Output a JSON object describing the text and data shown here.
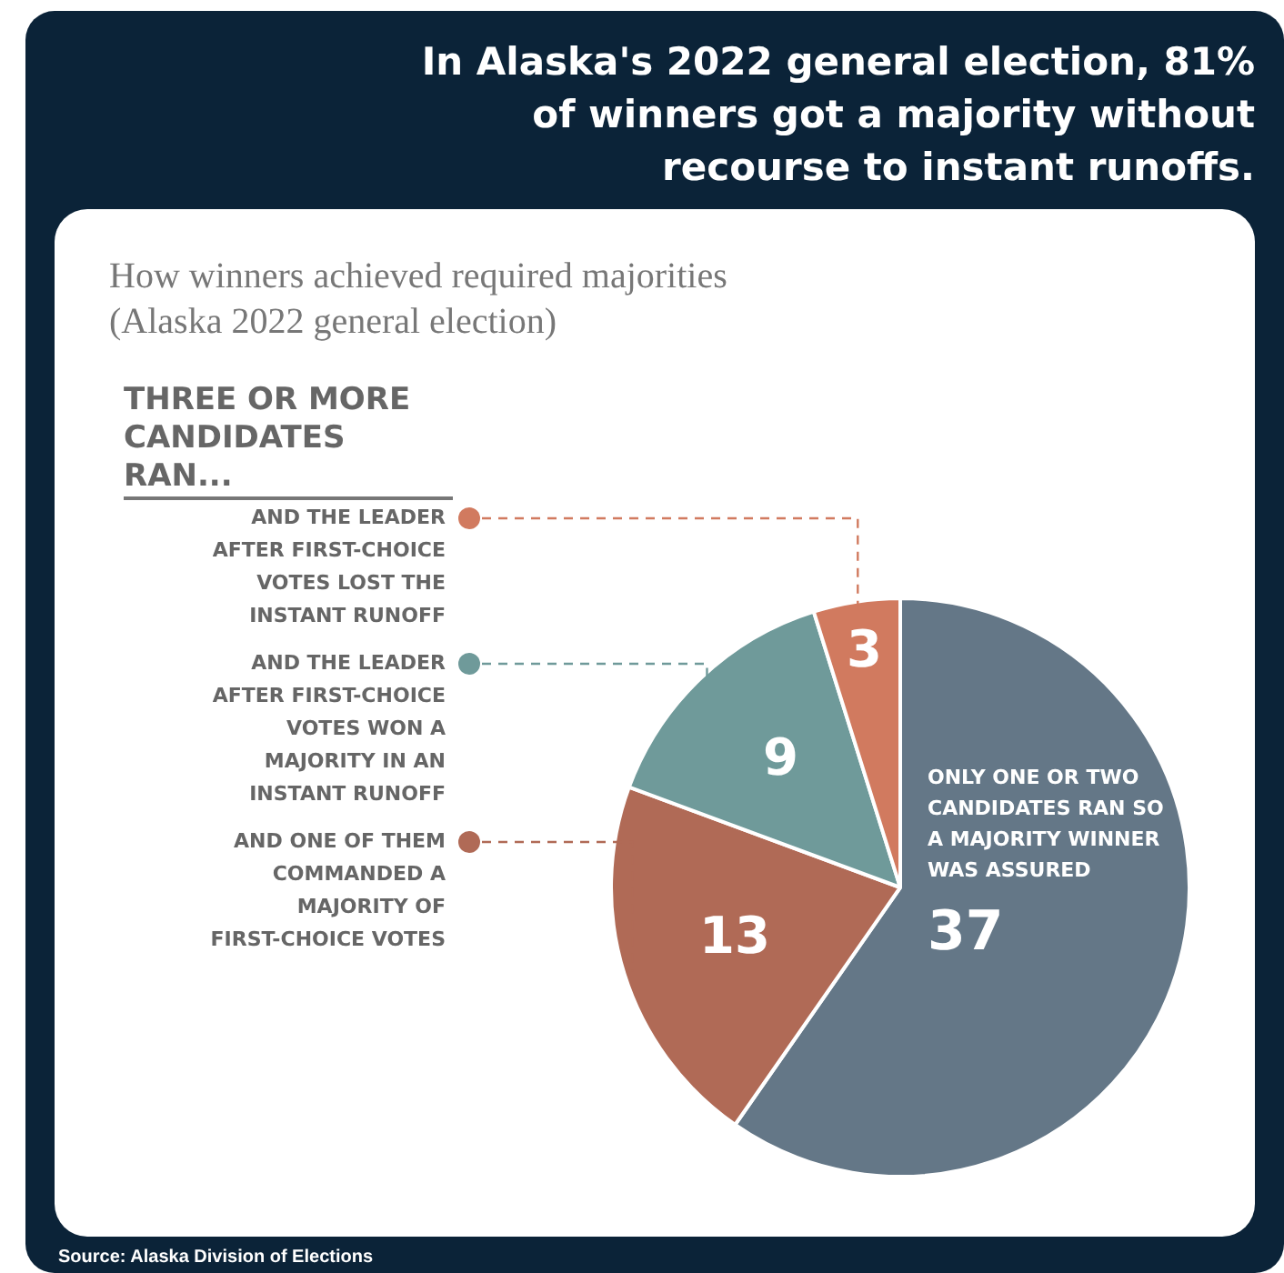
{
  "chart_data": {
    "type": "pie",
    "title": "In Alaska's 2022 general election, 81% of winners got a majority without recourse to instant runoffs.",
    "subtitle": "How winners achieved required majorities (Alaska 2022 general election)",
    "categories": [
      "ONLY ONE OR TWO CANDIDATES RAN SO A MAJORITY WINNER WAS ASSURED",
      "AND ONE OF THEM COMMANDED A MAJORITY OF FIRST-CHOICE VOTES",
      "AND THE LEADER AFTER FIRST-CHOICE VOTES WON A MAJORITY IN AN INSTANT RUNOFF",
      "AND THE LEADER AFTER FIRST-CHOICE VOTES LOST THE INSTANT RUNOFF"
    ],
    "values": [
      37,
      13,
      9,
      3
    ],
    "colors": [
      "#647787",
      "#b06a56",
      "#6f9a9a",
      "#d17a5f"
    ],
    "data_labels": true,
    "legend": "left",
    "annotations": [
      "THREE OR MORE CANDIDATES RAN...",
      "Source: Alaska Division of Elections"
    ]
  }
}
